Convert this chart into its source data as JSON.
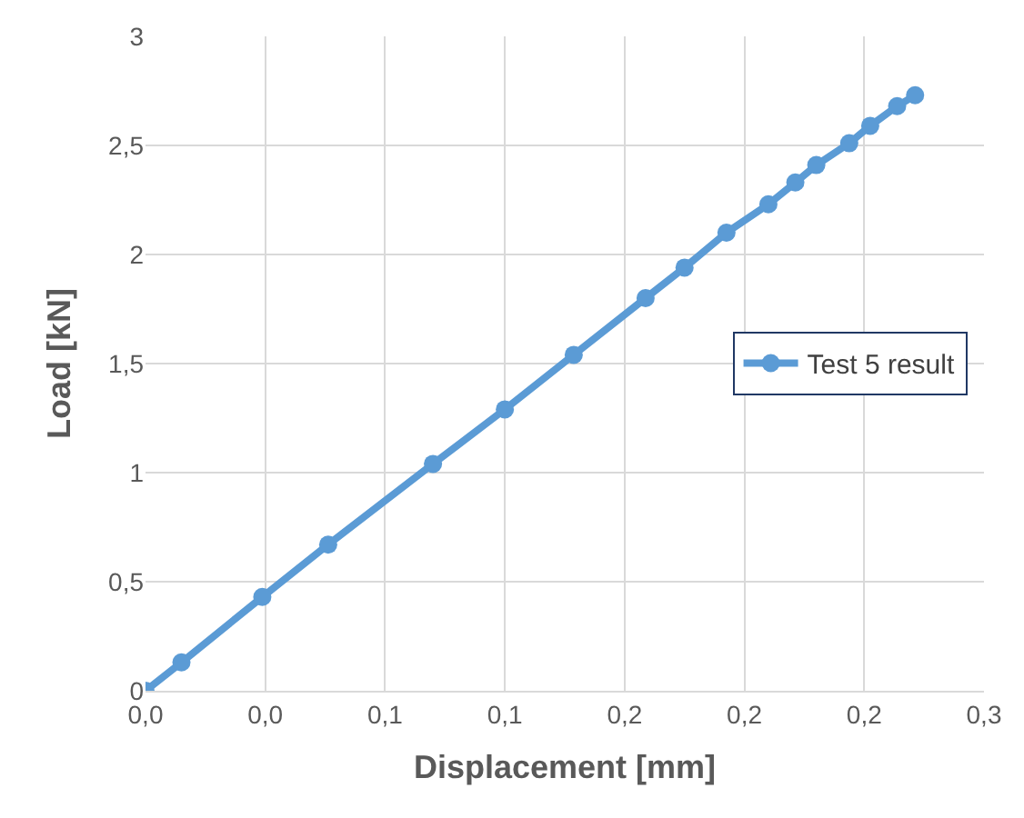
{
  "chart_data": {
    "type": "line",
    "xlabel": "Displacement [mm]",
    "ylabel": "Load [kN]",
    "x": [
      0,
      0.012,
      0.039,
      0.061,
      0.096,
      0.12,
      0.143,
      0.167,
      0.18,
      0.194,
      0.208,
      0.217,
      0.224,
      0.235,
      0.242,
      0.251,
      0.257
    ],
    "series": [
      {
        "name": "Test 5 result",
        "color": "#5b9bd5",
        "values": [
          0,
          0.13,
          0.43,
          0.67,
          1.04,
          1.29,
          1.54,
          1.8,
          1.94,
          2.1,
          2.23,
          2.33,
          2.41,
          2.51,
          2.59,
          2.68,
          2.73
        ]
      }
    ],
    "xlim": [
      0,
      0.28
    ],
    "xticks": [
      {
        "value": 0,
        "label": "0,0"
      },
      {
        "value": 0.04,
        "label": "0,0"
      },
      {
        "value": 0.08,
        "label": "0,1"
      },
      {
        "value": 0.12,
        "label": "0,1"
      },
      {
        "value": 0.16,
        "label": "0,2"
      },
      {
        "value": 0.2,
        "label": "0,2"
      },
      {
        "value": 0.24,
        "label": "0,2"
      },
      {
        "value": 0.28,
        "label": "0,3"
      }
    ],
    "ylim": [
      0,
      3
    ],
    "yticks": [
      0,
      {
        "value": 0.5,
        "label": "0,5"
      },
      1,
      {
        "value": 1.5,
        "label": "1,5"
      },
      2,
      {
        "value": 2.5,
        "label": "2,5"
      },
      3
    ],
    "grid": true,
    "legend": "right",
    "marker": "circle",
    "line_style": "solid"
  }
}
